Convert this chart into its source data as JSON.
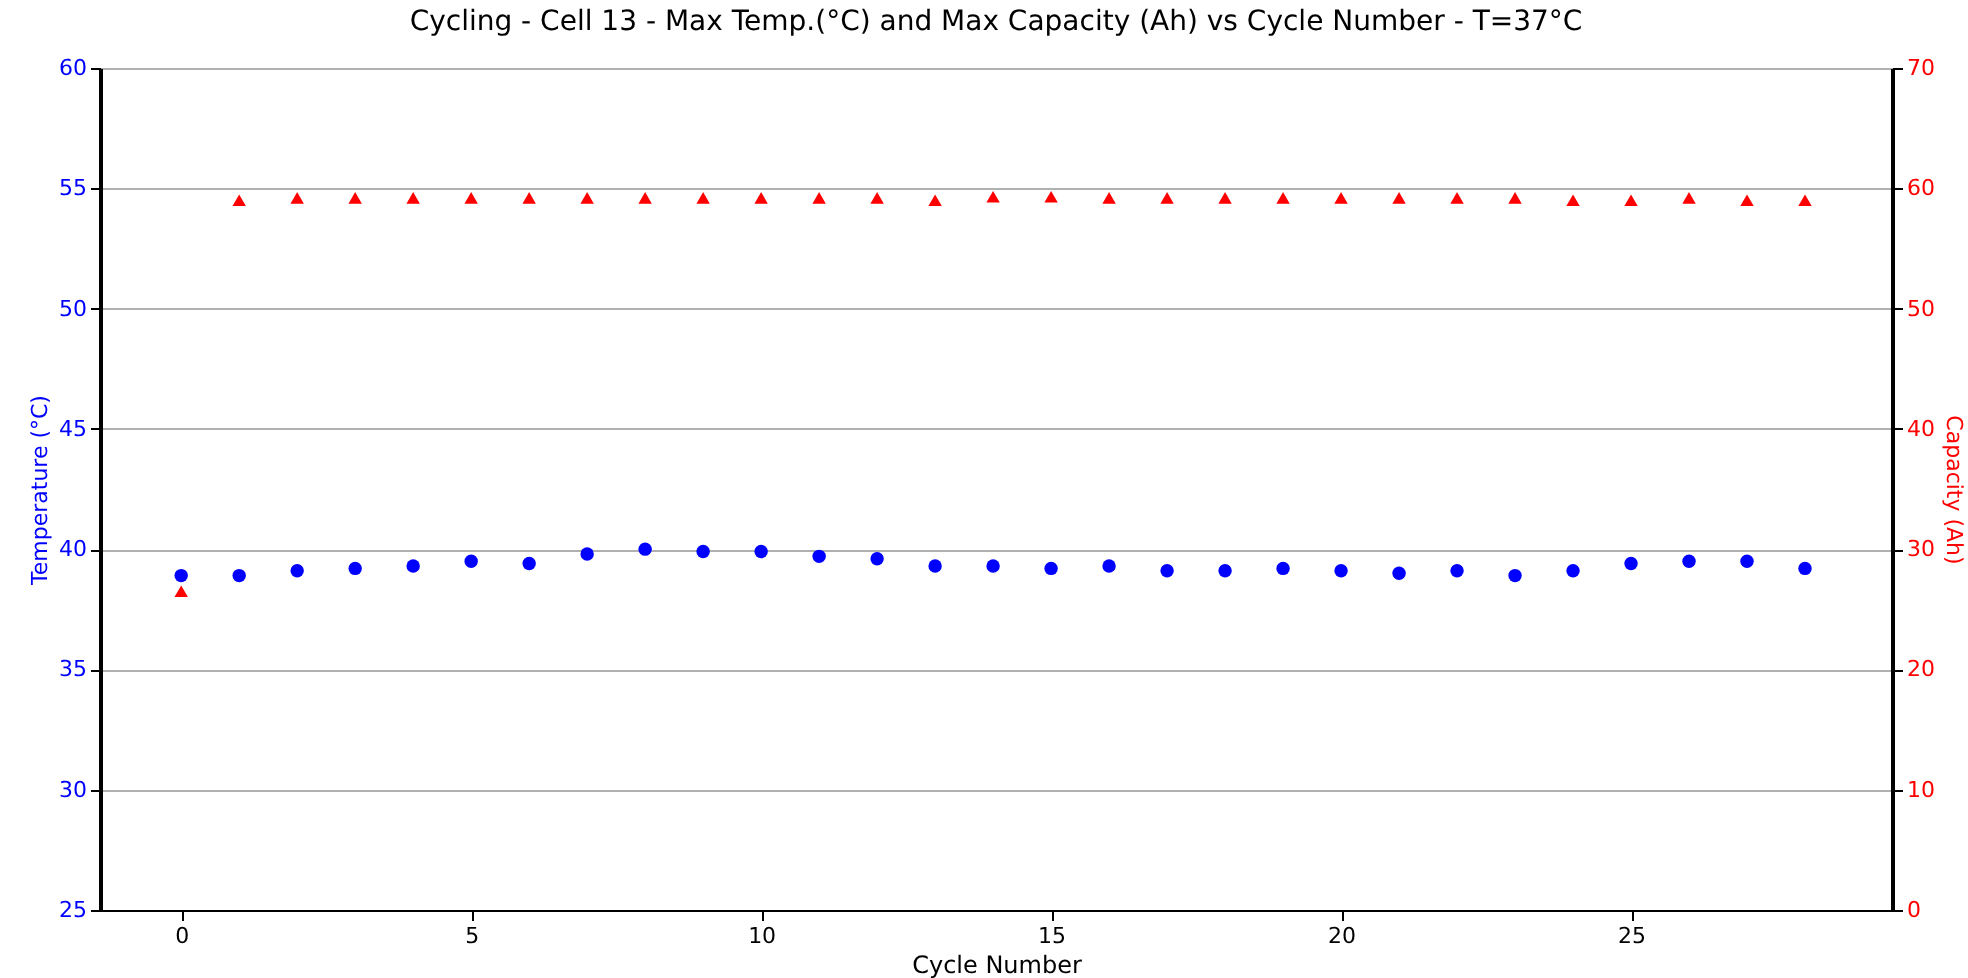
{
  "chart_data": {
    "type": "scatter",
    "title": "Cycling - Cell 13 - Max Temp.(°C) and Max Capacity (Ah) vs Cycle Number - T=37°C",
    "xlabel": "Cycle Number",
    "ylabel": "Temperature (°C)",
    "y2label": "Capacity (Ah)",
    "x": [
      0,
      1,
      2,
      3,
      4,
      5,
      6,
      7,
      8,
      9,
      10,
      11,
      12,
      13,
      14,
      15,
      16,
      17,
      18,
      19,
      20,
      21,
      22,
      23,
      24,
      25,
      26,
      27,
      28
    ],
    "series": [
      {
        "marker": "circle",
        "color": "#0000ff",
        "values": [
          38.9,
          38.9,
          39.1,
          39.2,
          39.3,
          39.5,
          39.4,
          39.8,
          40.0,
          39.9,
          39.9,
          39.7,
          39.6,
          39.3,
          39.3,
          39.2,
          39.3,
          39.1,
          39.1,
          39.2,
          39.1,
          39.0,
          39.1,
          38.9,
          39.1,
          39.4,
          39.5,
          39.5,
          39.2
        ]
      },
      {
        "marker": "triangle",
        "axis": "y2",
        "color": "#ff0000",
        "values": [
          26.5,
          59.0,
          59.2,
          59.2,
          59.2,
          59.2,
          59.2,
          59.2,
          59.2,
          59.2,
          59.2,
          59.2,
          59.2,
          59.0,
          59.3,
          59.3,
          59.2,
          59.2,
          59.2,
          59.2,
          59.2,
          59.2,
          59.2,
          59.2,
          59.0,
          59.0,
          59.2,
          59.0,
          59.0
        ]
      }
    ],
    "xlim": [
      -1.4,
      29.5
    ],
    "xticks": [
      0,
      5,
      10,
      15,
      20,
      25
    ],
    "ylim": [
      25,
      60
    ],
    "yticks": [
      25,
      30,
      35,
      40,
      45,
      50,
      55,
      60
    ],
    "y2lim": [
      0,
      70
    ],
    "y2ticks": [
      0,
      10,
      20,
      30,
      40,
      50,
      60,
      70
    ],
    "grid": "y"
  }
}
